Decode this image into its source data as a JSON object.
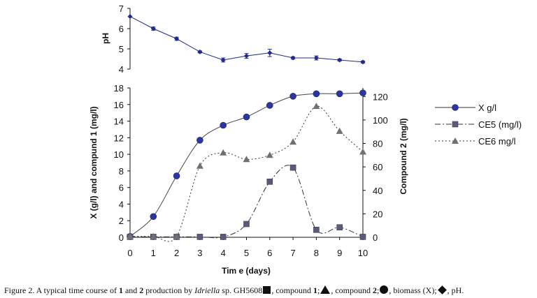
{
  "chart_data": [
    {
      "type": "line",
      "name": "ph-panel",
      "ylabel": "pH",
      "yticks": [
        "7",
        "6",
        "5",
        "4"
      ],
      "ylim": [
        4,
        7
      ],
      "x": [
        0,
        1,
        2,
        3,
        4,
        5,
        6,
        7,
        8,
        9,
        10
      ],
      "series": [
        {
          "name": "pH",
          "values": [
            6.6,
            6.0,
            5.5,
            4.85,
            4.45,
            4.65,
            4.8,
            4.55,
            4.55,
            4.45,
            4.35
          ],
          "errors": [
            0,
            0.08,
            0.08,
            0.05,
            0.1,
            0.12,
            0.18,
            0.06,
            0.1,
            0.05,
            0.05
          ],
          "color": "#1f2a8a",
          "marker": "diamond"
        }
      ]
    },
    {
      "type": "line",
      "name": "main-panel",
      "xlabel": "Tim e (days)",
      "ylabel": "X (g/l)  and compund 1 (mg/l)",
      "y2label": "Compound 2 (mg/l)",
      "xticks": [
        "0",
        "1",
        "2",
        "3",
        "4",
        "5",
        "6",
        "7",
        "8",
        "9",
        "10"
      ],
      "yticks": [
        "18",
        "16",
        "14",
        "12",
        "10",
        "8",
        "6",
        "4",
        "2",
        "0"
      ],
      "y2ticks": [
        "120",
        "100",
        "80",
        "60",
        "40",
        "20",
        "0"
      ],
      "ylim": [
        0,
        18
      ],
      "y2lim": [
        0,
        127.3
      ],
      "x": [
        0,
        1,
        2,
        3,
        4,
        5,
        6,
        7,
        8,
        9,
        10
      ],
      "series": [
        {
          "name": "X g/l",
          "axis": "left",
          "values": [
            0.1,
            2.5,
            7.4,
            11.7,
            13.5,
            14.5,
            15.9,
            17.0,
            17.3,
            17.3,
            17.4
          ],
          "style": "solid",
          "marker": "circle",
          "color": "#2a37a0"
        },
        {
          "name": "CE5 (mg/l)",
          "axis": "left",
          "values": [
            0.05,
            0.05,
            0.05,
            0.05,
            0.05,
            1.6,
            6.7,
            8.4,
            0.9,
            1.2,
            0.05
          ],
          "style": "dashdot",
          "marker": "square",
          "color": "#5a5a7a"
        },
        {
          "name": "CE6 mg/l",
          "axis": "left",
          "values": [
            0.1,
            0.1,
            0.1,
            8.6,
            10.2,
            9.4,
            9.9,
            11.5,
            15.8,
            12.8,
            10.3
          ],
          "style": "dotted",
          "marker": "triangle",
          "color": "#707070"
        }
      ],
      "legend": "right"
    }
  ],
  "caption": {
    "prefix": "Figure 2. A typical time course of ",
    "b1": "1",
    "and": " and ",
    "b2": "2",
    "mid": " production by ",
    "species": "Idriella",
    "strain": " sp. GH5608",
    "c1": ", compound ",
    "c1_num": "1",
    "c2": ", compound ",
    "c2_num": "2",
    "c3": ", biomass (X);",
    "c4": ", pH."
  }
}
